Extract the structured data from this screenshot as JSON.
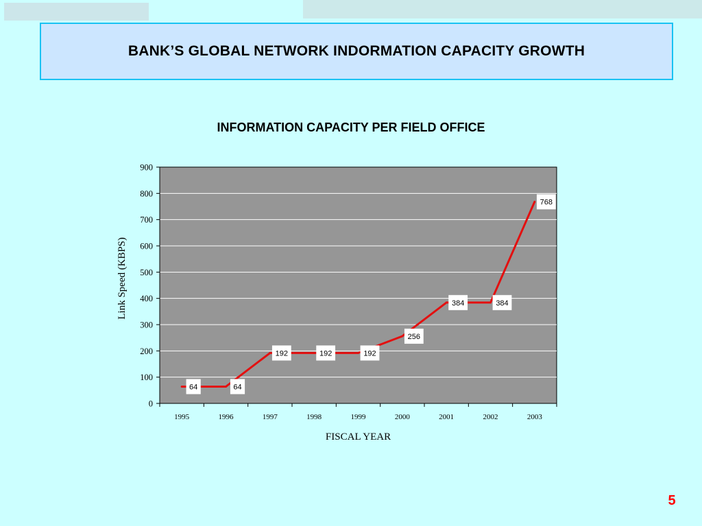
{
  "slide": {
    "title": "BANK’S GLOBAL NETWORK INDORMATION CAPACITY GROWTH",
    "page_number": "5"
  },
  "colors": {
    "background": "#ccffff",
    "title_box": "#cce6ff",
    "title_border": "#19c2f2",
    "plot_area": "#969696",
    "line": "#e31010",
    "page_number": "#ff0000"
  },
  "chart_data": {
    "type": "line",
    "title": "INFORMATION CAPACITY PER FIELD OFFICE",
    "xlabel": "FISCAL YEAR",
    "ylabel": "Link Speed (KBPS)",
    "categories": [
      "1995",
      "1996",
      "1997",
      "1998",
      "1999",
      "2000",
      "2001",
      "2002",
      "2003"
    ],
    "series": [
      {
        "values": [
          64,
          64,
          192,
          192,
          192,
          256,
          384,
          384,
          768
        ]
      }
    ],
    "ylim": [
      0,
      900
    ],
    "yticks": [
      0,
      100,
      200,
      300,
      400,
      500,
      600,
      700,
      800,
      900
    ],
    "grid": true,
    "legend": "none",
    "data_labels": true
  }
}
